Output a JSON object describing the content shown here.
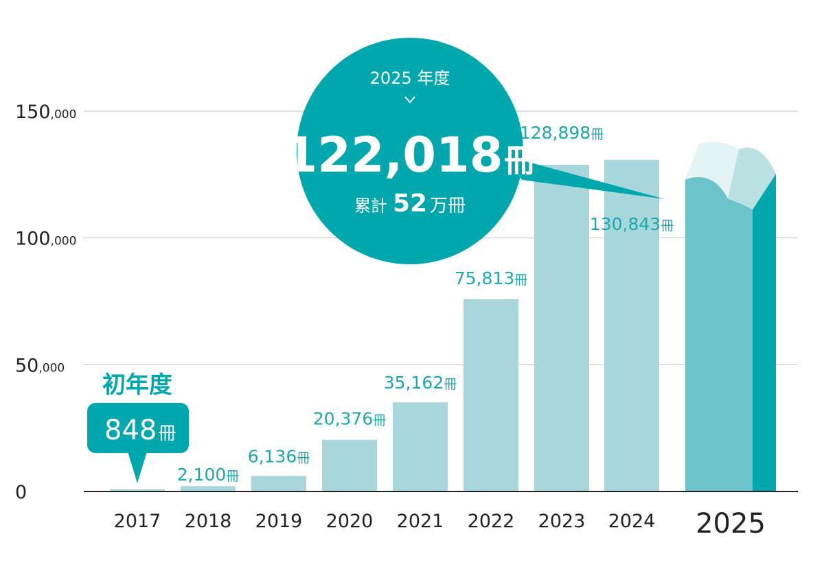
{
  "colors": {
    "bar": "#a7d7db",
    "bar_highlight": "#6cc3c9",
    "teal": "#00a8ae",
    "teal_light": "#b9e1e2",
    "grid": "#bfbfbf",
    "axis": "#222222",
    "value_label": "#1aa9ae"
  },
  "unit": "冊",
  "callout": {
    "year_label": "2025 年度",
    "main_value": "122,018",
    "main_unit": "冊",
    "cumulative_label": "累計",
    "cumulative_value": "52",
    "cumulative_unit": "万冊",
    "icon": "chevron-down-icon"
  },
  "first_year": {
    "heading": "初年度",
    "value": "848",
    "unit": "冊"
  },
  "chart_data": {
    "type": "bar",
    "categories": [
      "2017",
      "2018",
      "2019",
      "2020",
      "2021",
      "2022",
      "2023",
      "2024",
      "2025"
    ],
    "values": [
      848,
      2100,
      6136,
      20376,
      35162,
      75813,
      128898,
      130843,
      122018
    ],
    "value_labels": [
      "848",
      "2,100",
      "6,136",
      "20,376",
      "35,162",
      "75,813",
      "128,898",
      "130,843",
      "122,018"
    ],
    "y_ticks": [
      {
        "main": "150",
        "small": ",000",
        "value": 150000
      },
      {
        "main": "100",
        "small": ",000",
        "value": 100000
      },
      {
        "main": "50",
        "small": ",000",
        "value": 50000
      },
      {
        "main": "0",
        "small": "",
        "value": 0
      }
    ],
    "ylim": [
      0,
      150000
    ],
    "grid": true,
    "highlight_category": "2025",
    "highlight_style": "book-icon"
  }
}
